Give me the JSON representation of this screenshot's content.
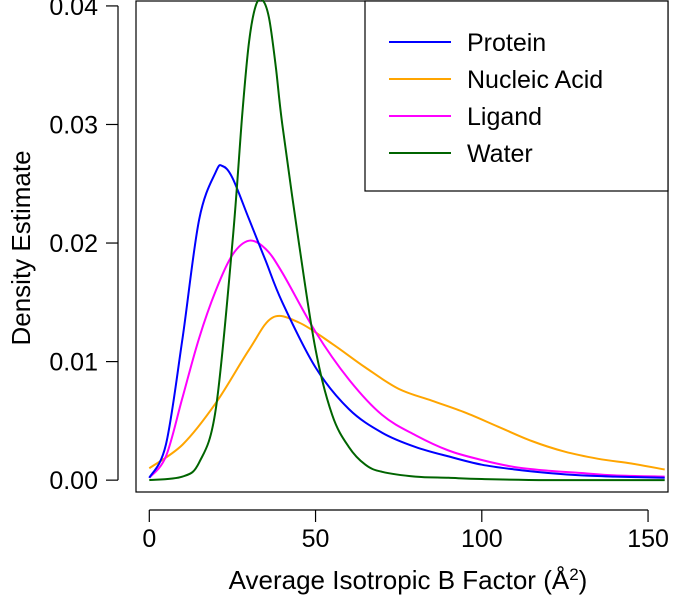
{
  "chart_data": {
    "type": "line",
    "title": "",
    "xlabel": "Average Isotropic B Factor (Å",
    "xlabel_superscript": "2",
    "xlabel_suffix": ")",
    "ylabel": "Density Estimate",
    "xlim": [
      -4,
      156
    ],
    "ylim": [
      -0.001,
      0.0405
    ],
    "xticks": [
      0,
      50,
      100,
      150
    ],
    "xtick_labels": [
      "0",
      "50",
      "100",
      "150"
    ],
    "yticks": [
      0.0,
      0.01,
      0.02,
      0.03,
      0.04
    ],
    "ytick_labels": [
      "0.00",
      "0.01",
      "0.02",
      "0.03",
      "0.04"
    ],
    "grid": false,
    "legend_position": "top-right",
    "series": [
      {
        "name": "Protein",
        "color": "#0000ff",
        "x": [
          0,
          5,
          10,
          15,
          20,
          22,
          25,
          30,
          35,
          40,
          50,
          60,
          70,
          80,
          90,
          100,
          110,
          120,
          130,
          140,
          155
        ],
        "y": [
          0.0002,
          0.003,
          0.012,
          0.022,
          0.026,
          0.0265,
          0.0255,
          0.022,
          0.0185,
          0.015,
          0.0095,
          0.006,
          0.004,
          0.0028,
          0.002,
          0.0013,
          0.0009,
          0.0006,
          0.0004,
          0.0003,
          0.0002
        ]
      },
      {
        "name": "Nucleic Acid",
        "color": "#ffa500",
        "x": [
          0,
          10,
          20,
          30,
          37,
          45,
          55,
          65,
          75,
          85,
          95,
          105,
          115,
          125,
          135,
          145,
          155
        ],
        "y": [
          0.001,
          0.003,
          0.0065,
          0.011,
          0.0137,
          0.0133,
          0.0115,
          0.0095,
          0.0077,
          0.0067,
          0.0057,
          0.0045,
          0.0033,
          0.0024,
          0.0018,
          0.0014,
          0.0009
        ]
      },
      {
        "name": "Ligand",
        "color": "#ff00ff",
        "x": [
          0,
          5,
          10,
          15,
          20,
          25,
          30,
          35,
          40,
          50,
          60,
          70,
          80,
          90,
          100,
          110,
          120,
          130,
          140,
          155
        ],
        "y": [
          0.0002,
          0.002,
          0.007,
          0.012,
          0.016,
          0.019,
          0.0202,
          0.0195,
          0.0175,
          0.0125,
          0.0085,
          0.0055,
          0.0038,
          0.0025,
          0.0017,
          0.0011,
          0.0008,
          0.0006,
          0.0004,
          0.0003
        ]
      },
      {
        "name": "Water",
        "color": "#006400",
        "x": [
          0,
          10,
          15,
          20,
          25,
          28,
          30,
          32,
          34,
          36,
          38,
          40,
          45,
          50,
          55,
          60,
          65,
          70,
          80,
          90,
          100,
          120,
          155
        ],
        "y": [
          0.0,
          0.0003,
          0.0015,
          0.006,
          0.02,
          0.031,
          0.037,
          0.04,
          0.0405,
          0.039,
          0.035,
          0.03,
          0.02,
          0.011,
          0.0055,
          0.0028,
          0.0013,
          0.0007,
          0.0003,
          0.0002,
          0.0001,
          0.0,
          0.0
        ]
      }
    ]
  }
}
